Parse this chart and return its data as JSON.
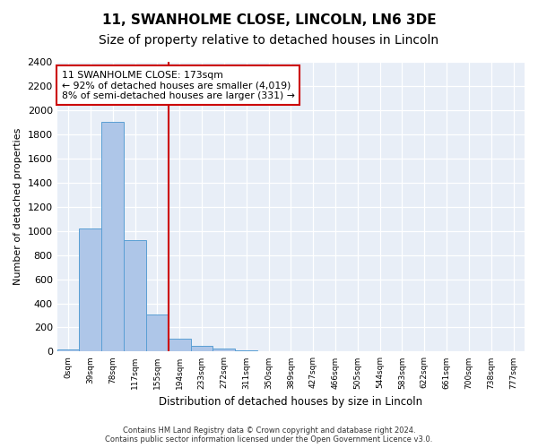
{
  "title": "11, SWANHOLME CLOSE, LINCOLN, LN6 3DE",
  "subtitle": "Size of property relative to detached houses in Lincoln",
  "xlabel": "Distribution of detached houses by size in Lincoln",
  "ylabel": "Number of detached properties",
  "bar_color": "#aec6e8",
  "bar_edge_color": "#5a9fd4",
  "vline_color": "#cc0000",
  "bins": [
    "0sqm",
    "39sqm",
    "78sqm",
    "117sqm",
    "155sqm",
    "194sqm",
    "233sqm",
    "272sqm",
    "311sqm",
    "350sqm",
    "389sqm",
    "427sqm",
    "466sqm",
    "505sqm",
    "544sqm",
    "583sqm",
    "622sqm",
    "661sqm",
    "700sqm",
    "738sqm",
    "777sqm"
  ],
  "values": [
    20,
    1020,
    1900,
    920,
    310,
    110,
    45,
    22,
    10,
    0,
    0,
    0,
    0,
    0,
    0,
    0,
    0,
    0,
    0,
    0,
    0
  ],
  "ylim": [
    0,
    2400
  ],
  "yticks": [
    0,
    200,
    400,
    600,
    800,
    1000,
    1200,
    1400,
    1600,
    1800,
    2000,
    2200,
    2400
  ],
  "property_label": "11 SWANHOLME CLOSE: 173sqm",
  "annotation_line1": "← 92% of detached houses are smaller (4,019)",
  "annotation_line2": "8% of semi-detached houses are larger (331) →",
  "footer_line1": "Contains HM Land Registry data © Crown copyright and database right 2024.",
  "footer_line2": "Contains public sector information licensed under the Open Government Licence v3.0.",
  "background_color": "#e8eef7",
  "grid_color": "#ffffff",
  "title_fontsize": 11,
  "subtitle_fontsize": 10,
  "vline_x_index": 4.5
}
